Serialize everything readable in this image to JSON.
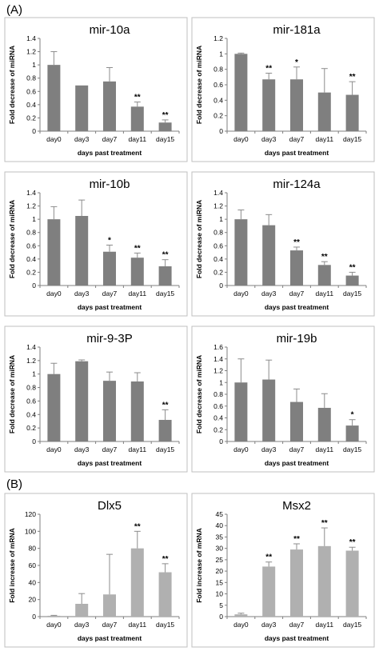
{
  "panel_labels": [
    "(A)",
    "(B)"
  ],
  "colors": {
    "bar_mirna": "#7f7f7f",
    "bar_mrna": "#b0b0b0",
    "error_bar": "#8c8c8c",
    "frame": "#bfbfbf"
  },
  "chart_data": [
    {
      "type": "bar",
      "panel": "(A)",
      "title": "mir-10a",
      "xlabel": "days past treatment",
      "ylabel": "Fold decrease of miRNA",
      "categories": [
        "day0",
        "day3",
        "day7",
        "day11",
        "day15"
      ],
      "values": [
        1.0,
        0.69,
        0.75,
        0.37,
        0.13
      ],
      "errors": [
        0.2,
        0.0,
        0.21,
        0.07,
        0.04
      ],
      "significance": [
        "",
        "",
        "",
        "**",
        "**"
      ],
      "ylim": [
        0,
        1.4
      ],
      "yticks": [
        "0",
        "0.2",
        "0.4",
        "0.6",
        "0.8",
        "1",
        "1.2",
        "1.4"
      ]
    },
    {
      "type": "bar",
      "panel": "(A)",
      "title": "mir-181a",
      "xlabel": "days past treatment",
      "ylabel": "Fold decrease of miRNA",
      "categories": [
        "day0",
        "day3",
        "day7",
        "day11",
        "day15"
      ],
      "values": [
        1.0,
        0.67,
        0.67,
        0.5,
        0.47
      ],
      "errors": [
        0.01,
        0.08,
        0.16,
        0.31,
        0.17
      ],
      "significance": [
        "",
        "**",
        "*",
        "",
        "**"
      ],
      "ylim": [
        0,
        1.2
      ],
      "yticks": [
        "0",
        "0.2",
        "0.4",
        "0.6",
        "0.8",
        "1",
        "1.2"
      ]
    },
    {
      "type": "bar",
      "panel": "(A)",
      "title": "mir-10b",
      "xlabel": "days past treatment",
      "ylabel": "Fold decrease of miRNA",
      "categories": [
        "day0",
        "day3",
        "day7",
        "day11",
        "day15"
      ],
      "values": [
        1.0,
        1.05,
        0.51,
        0.42,
        0.29
      ],
      "errors": [
        0.19,
        0.24,
        0.1,
        0.07,
        0.1
      ],
      "significance": [
        "",
        "",
        "*",
        "**",
        "**"
      ],
      "ylim": [
        0,
        1.4
      ],
      "yticks": [
        "0",
        "0.2",
        "0.4",
        "0.6",
        "0.8",
        "1",
        "1.2",
        "1.4"
      ]
    },
    {
      "type": "bar",
      "panel": "(A)",
      "title": "mir-124a",
      "xlabel": "days past treatment",
      "ylabel": "Fold decrease of miRNA",
      "categories": [
        "day0",
        "day3",
        "day7",
        "day11",
        "day15"
      ],
      "values": [
        1.0,
        0.91,
        0.53,
        0.31,
        0.15
      ],
      "errors": [
        0.14,
        0.16,
        0.05,
        0.05,
        0.05
      ],
      "significance": [
        "",
        "",
        "**",
        "**",
        "**"
      ],
      "ylim": [
        0,
        1.4
      ],
      "yticks": [
        "0",
        "0.2",
        "0.4",
        "0.6",
        "0.8",
        "1",
        "1.2",
        "1.4"
      ]
    },
    {
      "type": "bar",
      "panel": "(A)",
      "title": "mir-9-3P",
      "xlabel": "days past treatment",
      "ylabel": "Fold decrease of miRNA",
      "categories": [
        "day0",
        "day3",
        "day7",
        "day11",
        "day15"
      ],
      "values": [
        1.0,
        1.19,
        0.9,
        0.89,
        0.32
      ],
      "errors": [
        0.16,
        0.02,
        0.13,
        0.13,
        0.15
      ],
      "significance": [
        "",
        "",
        "",
        "",
        "**"
      ],
      "ylim": [
        0,
        1.4
      ],
      "yticks": [
        "0",
        "0.2",
        "0.4",
        "0.6",
        "0.8",
        "1",
        "1.2",
        "1.4"
      ]
    },
    {
      "type": "bar",
      "panel": "(A)",
      "title": "mir-19b",
      "xlabel": "days past treatment",
      "ylabel": "Fold decrease of miRNA",
      "categories": [
        "day0",
        "day3",
        "day7",
        "day11",
        "day15"
      ],
      "values": [
        1.0,
        1.05,
        0.67,
        0.57,
        0.27
      ],
      "errors": [
        0.4,
        0.33,
        0.22,
        0.24,
        0.1
      ],
      "significance": [
        "",
        "",
        "",
        "",
        "*"
      ],
      "ylim": [
        0,
        1.6
      ],
      "yticks": [
        "0",
        "0.2",
        "0.4",
        "0.6",
        "0.8",
        "1",
        "1.2",
        "1.4",
        "1.6"
      ]
    },
    {
      "type": "bar",
      "panel": "(B)",
      "title": "Dlx5",
      "xlabel": "days past treatment",
      "ylabel": "Fold increase of mRNA",
      "categories": [
        "day0",
        "day3",
        "day7",
        "day11",
        "day15"
      ],
      "values": [
        1,
        15,
        26,
        80,
        52
      ],
      "errors": [
        0.5,
        12,
        47,
        20,
        10
      ],
      "significance": [
        "",
        "",
        "",
        "**",
        "**"
      ],
      "ylim": [
        0,
        120
      ],
      "yticks": [
        "0",
        "20",
        "40",
        "60",
        "80",
        "100",
        "120"
      ]
    },
    {
      "type": "bar",
      "panel": "(B)",
      "title": "Msx2",
      "xlabel": "days past treatment",
      "ylabel": "Fold increase of mRNA",
      "categories": [
        "day0",
        "day3",
        "day7",
        "day11",
        "day15"
      ],
      "values": [
        1,
        22,
        29.5,
        31,
        29
      ],
      "errors": [
        0.5,
        2,
        2.5,
        8,
        1.5
      ],
      "significance": [
        "",
        "**",
        "**",
        "**",
        "**"
      ],
      "ylim": [
        0,
        45
      ],
      "yticks": [
        "0",
        "5",
        "10",
        "15",
        "20",
        "25",
        "30",
        "35",
        "40",
        "45"
      ]
    }
  ]
}
